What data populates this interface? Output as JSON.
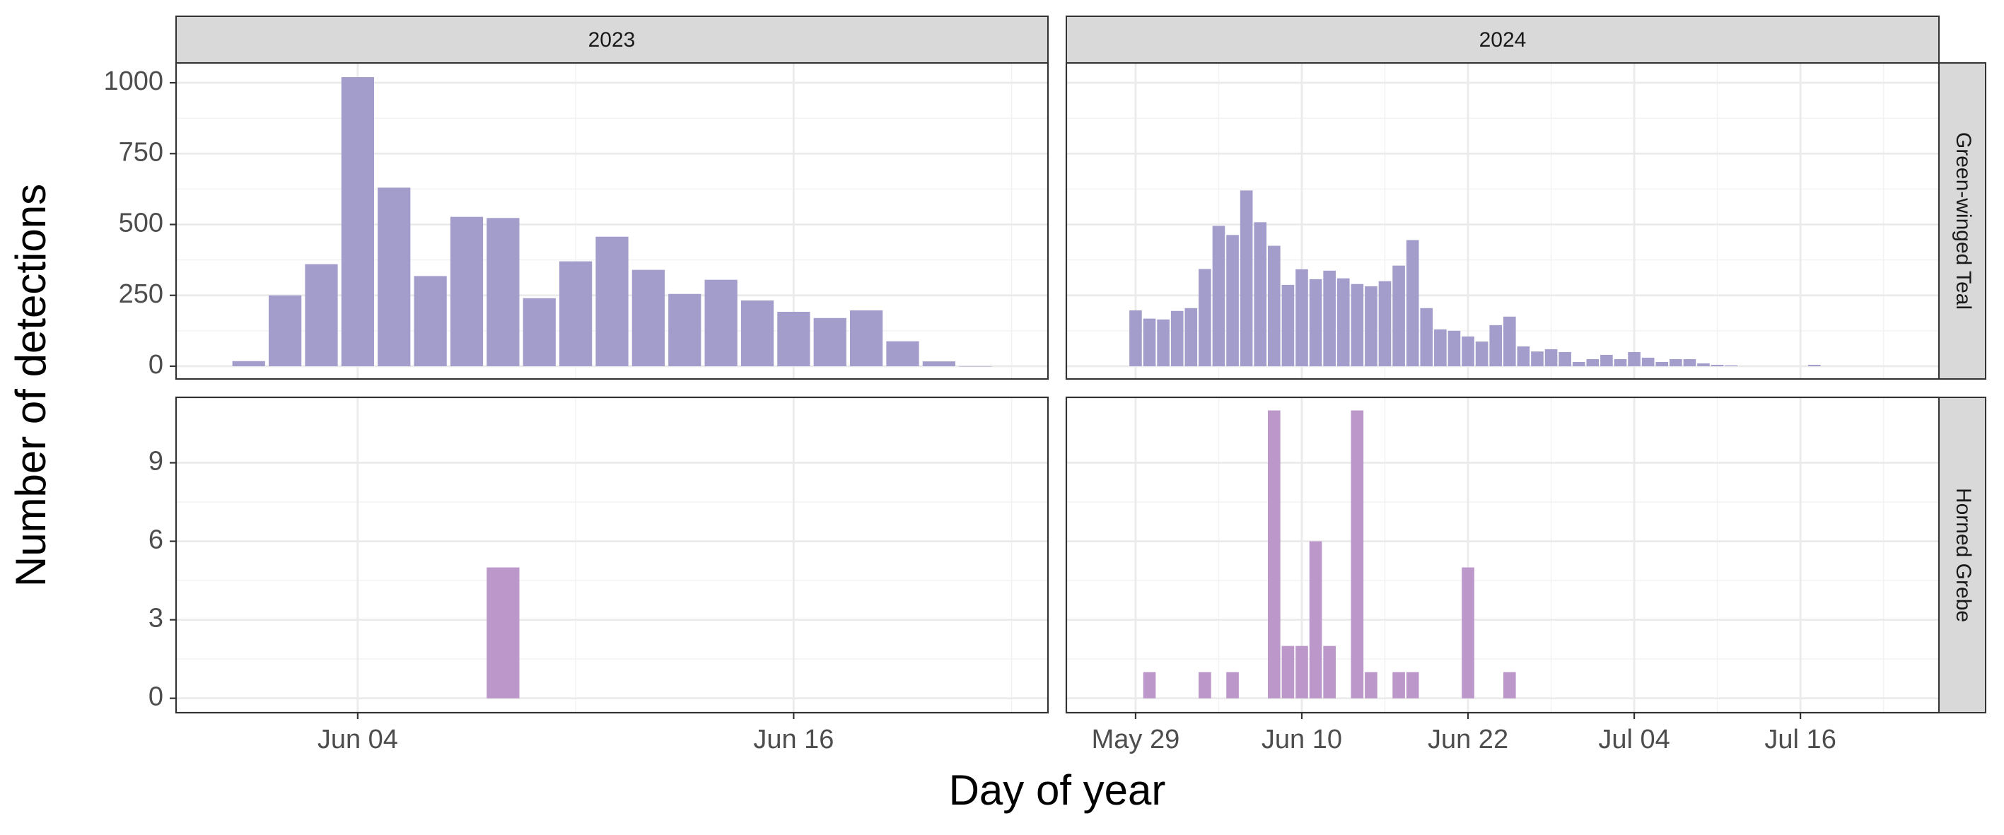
{
  "chart_data": {
    "type": "bar",
    "layout": "facet_grid",
    "xlabel": "Day of year",
    "ylabel": "Number of detections",
    "colors": {
      "Green-winged Teal": "#a39dcb",
      "Horned Grebe": "#bb98c9"
    },
    "years": [
      "2023",
      "2024"
    ],
    "species": [
      "Green-winged Teal",
      "Horned Grebe"
    ],
    "x_ranges": {
      "2023": [
        "2023-05-30",
        "2023-06-23"
      ],
      "2024": [
        "2024-05-24",
        "2024-07-26"
      ]
    },
    "y_ranges": {
      "Green-winged Teal": [
        -45,
        1070
      ],
      "Horned Grebe": [
        -0.55,
        11.5
      ]
    },
    "x_ticks": {
      "2023": [
        {
          "date": "2023-06-04",
          "label": "Jun 04"
        },
        {
          "date": "2023-06-16",
          "label": "Jun 16"
        }
      ],
      "2024": [
        {
          "date": "2024-05-29",
          "label": "May 29"
        },
        {
          "date": "2024-06-10",
          "label": "Jun 10"
        },
        {
          "date": "2024-06-22",
          "label": "Jun 22"
        },
        {
          "date": "2024-07-04",
          "label": "Jul 04"
        },
        {
          "date": "2024-07-16",
          "label": "Jul 16"
        }
      ]
    },
    "y_ticks": {
      "Green-winged Teal": [
        0,
        250,
        500,
        750,
        1000
      ],
      "Horned Grebe": [
        0,
        3,
        6,
        9
      ]
    },
    "panels": [
      {
        "year": "2023",
        "species": "Green-winged Teal",
        "x": [
          "2023-06-01",
          "2023-06-02",
          "2023-06-03",
          "2023-06-04",
          "2023-06-05",
          "2023-06-06",
          "2023-06-07",
          "2023-06-08",
          "2023-06-09",
          "2023-06-10",
          "2023-06-11",
          "2023-06-12",
          "2023-06-13",
          "2023-06-14",
          "2023-06-15",
          "2023-06-16",
          "2023-06-17",
          "2023-06-18",
          "2023-06-19",
          "2023-06-20",
          "2023-06-21"
        ],
        "values": [
          18,
          250,
          360,
          1020,
          630,
          318,
          527,
          523,
          240,
          370,
          457,
          340,
          255,
          305,
          232,
          192,
          170,
          197,
          88,
          17,
          0
        ]
      },
      {
        "year": "2024",
        "species": "Green-winged Teal",
        "x": [
          "2024-05-29",
          "2024-05-30",
          "2024-05-31",
          "2024-06-01",
          "2024-06-02",
          "2024-06-03",
          "2024-06-04",
          "2024-06-05",
          "2024-06-06",
          "2024-06-07",
          "2024-06-08",
          "2024-06-09",
          "2024-06-10",
          "2024-06-11",
          "2024-06-12",
          "2024-06-13",
          "2024-06-14",
          "2024-06-15",
          "2024-06-16",
          "2024-06-17",
          "2024-06-18",
          "2024-06-19",
          "2024-06-20",
          "2024-06-21",
          "2024-06-22",
          "2024-06-23",
          "2024-06-24",
          "2024-06-25",
          "2024-06-26",
          "2024-06-27",
          "2024-06-28",
          "2024-06-29",
          "2024-06-30",
          "2024-07-01",
          "2024-07-02",
          "2024-07-03",
          "2024-07-04",
          "2024-07-05",
          "2024-07-06",
          "2024-07-07",
          "2024-07-08",
          "2024-07-09",
          "2024-07-10",
          "2024-07-11",
          "2024-07-17"
        ],
        "values": [
          197,
          168,
          165,
          195,
          205,
          343,
          495,
          463,
          620,
          508,
          425,
          287,
          342,
          307,
          337,
          310,
          290,
          282,
          300,
          355,
          445,
          205,
          130,
          125,
          105,
          87,
          145,
          175,
          70,
          52,
          60,
          50,
          15,
          25,
          40,
          25,
          50,
          30,
          15,
          25,
          25,
          10,
          5,
          3,
          5
        ]
      },
      {
        "year": "2023",
        "species": "Horned Grebe",
        "x": [
          "2023-06-08"
        ],
        "values": [
          5
        ]
      },
      {
        "year": "2024",
        "species": "Horned Grebe",
        "x": [
          "2024-05-30",
          "2024-06-03",
          "2024-06-05",
          "2024-06-08",
          "2024-06-09",
          "2024-06-10",
          "2024-06-11",
          "2024-06-12",
          "2024-06-14",
          "2024-06-15",
          "2024-06-17",
          "2024-06-18",
          "2024-06-22",
          "2024-06-25"
        ],
        "values": [
          1,
          1,
          1,
          11,
          2,
          2,
          6,
          2,
          11,
          1,
          1,
          1,
          5,
          1
        ]
      }
    ]
  }
}
